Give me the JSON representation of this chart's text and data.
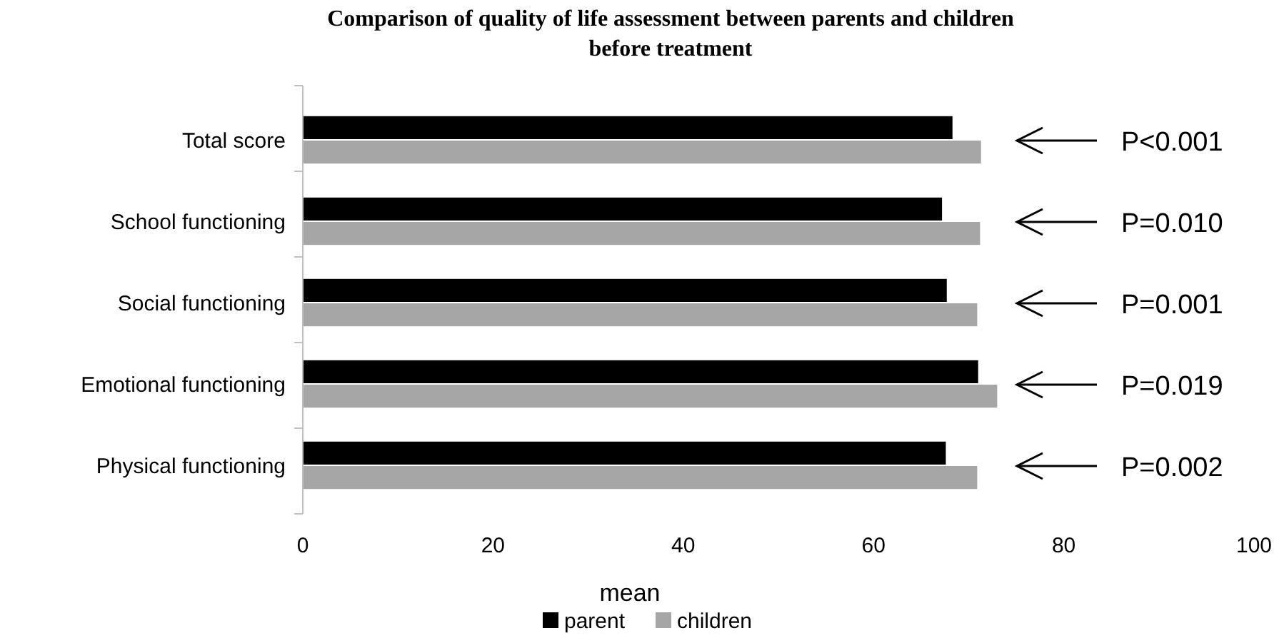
{
  "chart_data": {
    "type": "bar",
    "orientation": "horizontal",
    "title": "Comparison of quality of life assessment between parents and children before treatment",
    "xlabel": "mean",
    "categories": [
      "Total score",
      "School functioning",
      "Social functioning",
      "Emotional functioning",
      "Physical functioning"
    ],
    "series": [
      {
        "name": "parent",
        "color": "#000000",
        "values": [
          68.3,
          67.2,
          67.7,
          71.0,
          67.6
        ]
      },
      {
        "name": "children",
        "color": "#a6a6a6",
        "values": [
          71.3,
          71.2,
          70.9,
          73.0,
          70.9
        ]
      }
    ],
    "xlim": [
      0,
      100
    ],
    "xticks": [
      0,
      20,
      40,
      60,
      80,
      100
    ],
    "grid": false,
    "legend": "bottom",
    "annotations": [
      "P<0.001",
      "P=0.010",
      "P=0.001",
      "P=0.019",
      "P=0.002"
    ]
  }
}
